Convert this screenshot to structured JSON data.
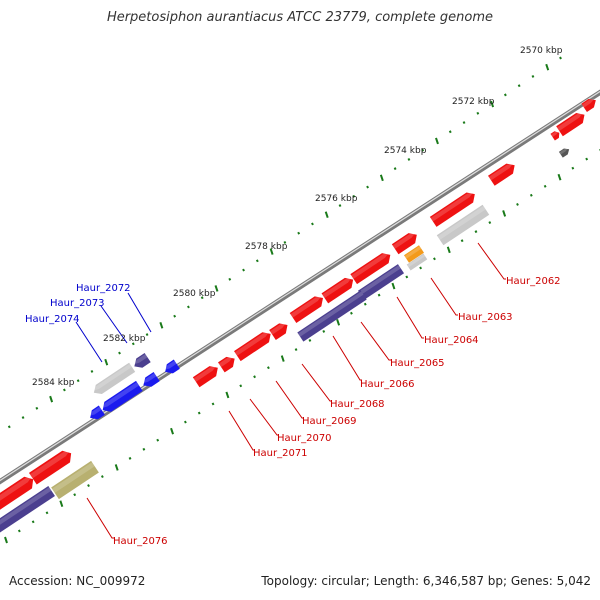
{
  "title": "Herpetosiphon aurantiacus ATCC 23779, complete genome",
  "footer": {
    "accession": "Accession: NC_009972",
    "summary": "Topology: circular; Length: 6,346,587 bp; Genes: 5,042"
  },
  "kbp_labels": [
    "2570 kbp",
    "2572 kbp",
    "2574 kbp",
    "2576 kbp",
    "2578 kbp",
    "2580 kbp",
    "2582 kbp",
    "2584 kbp"
  ],
  "forward_labels": [
    "Haur_2072",
    "Haur_2073",
    "Haur_2074"
  ],
  "reverse_labels": [
    "Haur_2062",
    "Haur_2063",
    "Haur_2064",
    "Haur_2065",
    "Haur_2066",
    "Haur_2068",
    "Haur_2069",
    "Haur_2070",
    "Haur_2071",
    "Haur_2076"
  ],
  "colors": {
    "forward_label": "#0000cc",
    "reverse_label": "#cc0000",
    "gene_red": "#ee1111",
    "gene_blue": "#1a1aee",
    "gene_navy": "#4b3f8f",
    "gene_gray": "#c8c8c8",
    "gene_orange": "#f39a1a",
    "gene_olive": "#b8b070",
    "backbone": "#7a7a7a",
    "tick": "#1a7a1a"
  }
}
